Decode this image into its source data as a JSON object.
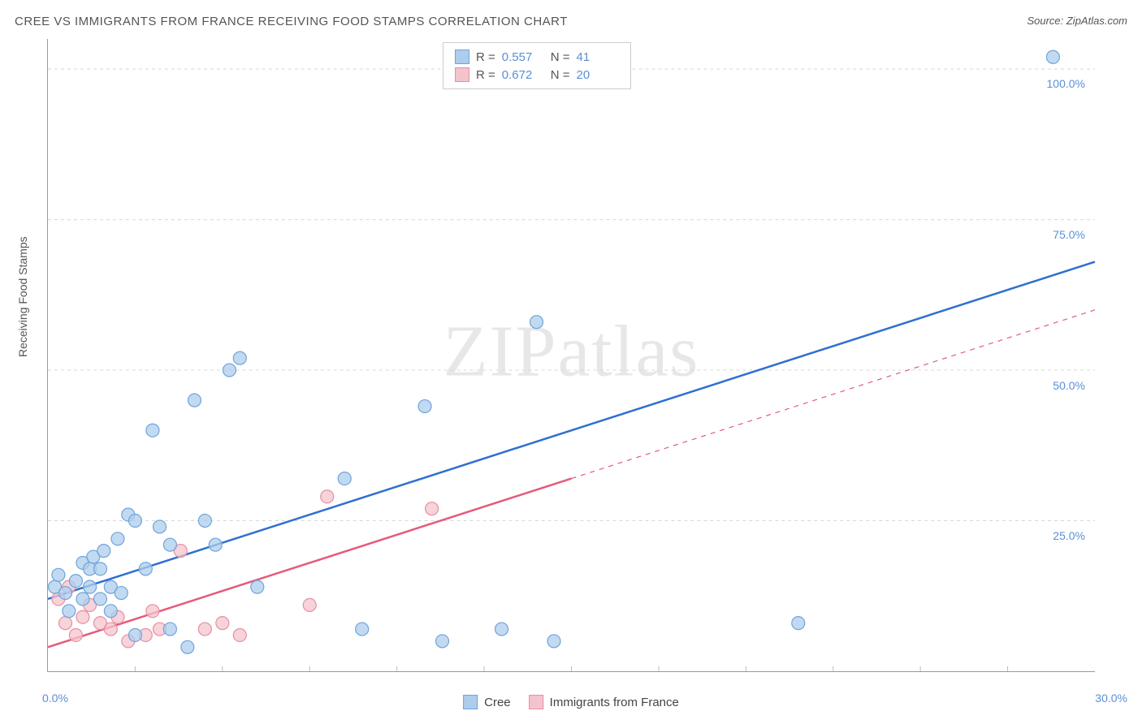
{
  "header": {
    "title": "CREE VS IMMIGRANTS FROM FRANCE RECEIVING FOOD STAMPS CORRELATION CHART",
    "source": "Source: ZipAtlas.com"
  },
  "chart": {
    "type": "scatter",
    "ylabel": "Receiving Food Stamps",
    "background_color": "#ffffff",
    "grid_color": "#d8d8d8",
    "axis_label_color": "#5b8fd6",
    "xlim": [
      0,
      30
    ],
    "ylim": [
      0,
      105
    ],
    "ytick_values": [
      25,
      50,
      75,
      100
    ],
    "ytick_labels": [
      "25.0%",
      "50.0%",
      "75.0%",
      "100.0%"
    ],
    "xtick_minor_step": 2.5,
    "xtick_labels": {
      "0": "0.0%",
      "30": "30.0%"
    },
    "watermark": "ZIPatlas",
    "marker_radius": 8,
    "marker_stroke_width": 1.2,
    "line_width": 2.5,
    "series": [
      {
        "name": "Cree",
        "fill_color": "#aecdec",
        "stroke_color": "#6fa3db",
        "line_color": "#2e6fd1",
        "stats": {
          "R": "0.557",
          "N": "41"
        },
        "trend": {
          "x1": 0,
          "y1": 12,
          "x2": 30,
          "y2": 68,
          "solid_until_x": 30
        },
        "points": [
          [
            0.2,
            14
          ],
          [
            0.3,
            16
          ],
          [
            0.5,
            13
          ],
          [
            0.6,
            10
          ],
          [
            0.8,
            15
          ],
          [
            1.0,
            18
          ],
          [
            1.0,
            12
          ],
          [
            1.2,
            17
          ],
          [
            1.2,
            14
          ],
          [
            1.3,
            19
          ],
          [
            1.5,
            12
          ],
          [
            1.5,
            17
          ],
          [
            1.6,
            20
          ],
          [
            1.8,
            10
          ],
          [
            1.8,
            14
          ],
          [
            2.0,
            22
          ],
          [
            2.1,
            13
          ],
          [
            2.3,
            26
          ],
          [
            2.5,
            25
          ],
          [
            2.5,
            6
          ],
          [
            2.8,
            17
          ],
          [
            3.0,
            40
          ],
          [
            3.2,
            24
          ],
          [
            3.5,
            21
          ],
          [
            3.5,
            7
          ],
          [
            4.0,
            4
          ],
          [
            4.2,
            45
          ],
          [
            4.5,
            25
          ],
          [
            4.8,
            21
          ],
          [
            5.2,
            50
          ],
          [
            5.5,
            52
          ],
          [
            6.0,
            14
          ],
          [
            8.5,
            32
          ],
          [
            9.0,
            7
          ],
          [
            10.8,
            44
          ],
          [
            11.3,
            5
          ],
          [
            13.0,
            7
          ],
          [
            14.0,
            58
          ],
          [
            14.5,
            5
          ],
          [
            21.5,
            8
          ],
          [
            28.8,
            102
          ]
        ]
      },
      {
        "name": "Immigrants from France",
        "fill_color": "#f4c4ce",
        "stroke_color": "#e78ea2",
        "line_color": "#e55a7a",
        "stats": {
          "R": "0.672",
          "N": "20"
        },
        "trend": {
          "x1": 0,
          "y1": 4,
          "x2": 30,
          "y2": 60,
          "solid_until_x": 15
        },
        "points": [
          [
            0.3,
            12
          ],
          [
            0.5,
            8
          ],
          [
            0.6,
            14
          ],
          [
            0.8,
            6
          ],
          [
            1.0,
            9
          ],
          [
            1.2,
            11
          ],
          [
            1.5,
            8
          ],
          [
            1.8,
            7
          ],
          [
            2.0,
            9
          ],
          [
            2.3,
            5
          ],
          [
            2.8,
            6
          ],
          [
            3.0,
            10
          ],
          [
            3.2,
            7
          ],
          [
            3.8,
            20
          ],
          [
            4.5,
            7
          ],
          [
            5.0,
            8
          ],
          [
            5.5,
            6
          ],
          [
            7.5,
            11
          ],
          [
            8.0,
            29
          ],
          [
            11.0,
            27
          ]
        ]
      }
    ]
  },
  "stats_legend": {
    "rows": [
      {
        "swatch_fill": "#aecdec",
        "swatch_stroke": "#6fa3db",
        "R": "0.557",
        "N": "41"
      },
      {
        "swatch_fill": "#f4c4ce",
        "swatch_stroke": "#e78ea2",
        "R": "0.672",
        "N": "20"
      }
    ],
    "labels": {
      "R": "R =",
      "N": "N ="
    }
  },
  "bottom_legend": {
    "items": [
      {
        "swatch_fill": "#aecdec",
        "swatch_stroke": "#6fa3db",
        "label": "Cree"
      },
      {
        "swatch_fill": "#f4c4ce",
        "swatch_stroke": "#e78ea2",
        "label": "Immigrants from France"
      }
    ]
  }
}
